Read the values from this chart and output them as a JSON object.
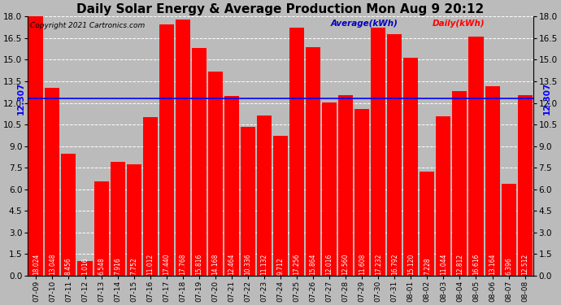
{
  "title": "Daily Solar Energy & Average Production Mon Aug 9 20:12",
  "copyright": "Copyright 2021 Cartronics.com",
  "legend_average": "Average(kWh)",
  "legend_daily": "Daily(kWh)",
  "average_value": 12.307,
  "categories": [
    "07-09",
    "07-10",
    "07-11",
    "07-12",
    "07-13",
    "07-14",
    "07-15",
    "07-16",
    "07-17",
    "07-18",
    "07-19",
    "07-20",
    "07-21",
    "07-22",
    "07-23",
    "07-24",
    "07-25",
    "07-26",
    "07-27",
    "07-28",
    "07-29",
    "07-30",
    "07-31",
    "08-01",
    "08-02",
    "08-03",
    "08-04",
    "08-05",
    "08-06",
    "08-07",
    "08-08"
  ],
  "values": [
    18.024,
    13.048,
    8.456,
    1.016,
    6.548,
    7.916,
    7.752,
    11.012,
    17.44,
    17.768,
    15.816,
    14.168,
    12.464,
    10.336,
    11.132,
    9.712,
    17.256,
    15.864,
    12.016,
    12.56,
    11.608,
    17.232,
    16.792,
    15.12,
    7.228,
    11.044,
    12.812,
    16.616,
    13.164,
    6.396,
    12.512
  ],
  "bar_color": "#ff0000",
  "avg_line_color": "#0000ff",
  "bar_text_color": "#ffffff",
  "title_color": "#000000",
  "copyright_color": "#000000",
  "legend_avg_color": "#0000bb",
  "legend_daily_color": "#ff0000",
  "ylim": [
    0,
    18.0
  ],
  "yticks": [
    0.0,
    1.5,
    3.0,
    4.5,
    6.0,
    7.5,
    9.0,
    10.5,
    12.0,
    13.5,
    15.0,
    16.5,
    18.0
  ],
  "grid_color": "#ffffff",
  "background_color": "#bbbbbb",
  "title_fontsize": 11,
  "bar_label_fontsize": 5.5,
  "avg_label_fontsize": 7.5,
  "ytick_fontsize": 7.5,
  "xtick_fontsize": 6.5
}
